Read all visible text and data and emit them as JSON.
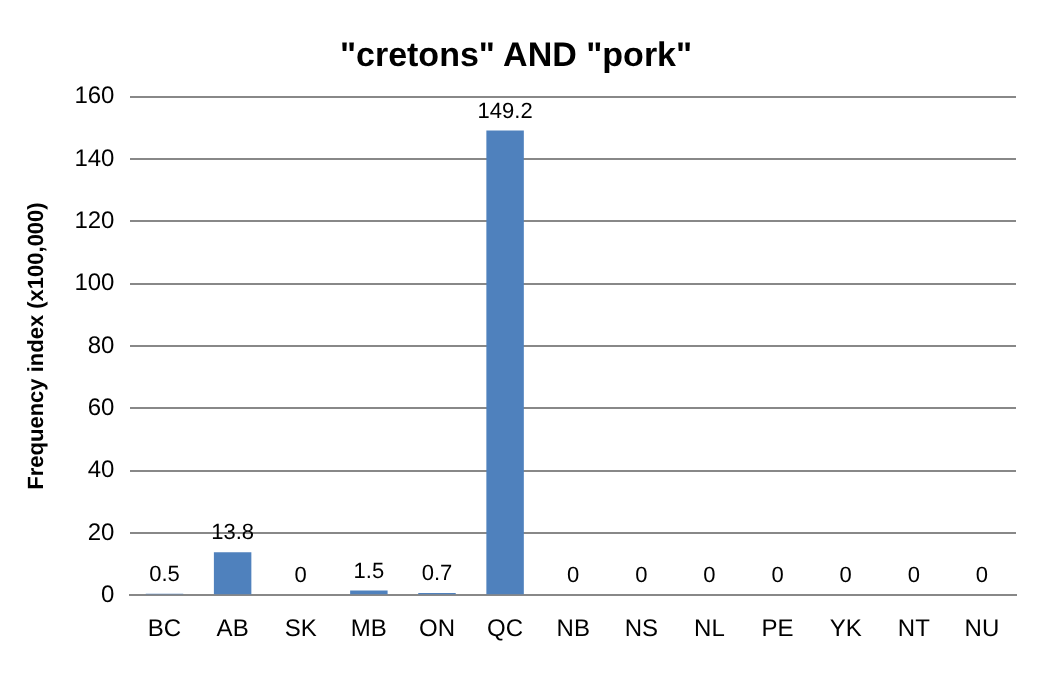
{
  "chart_data": {
    "type": "bar",
    "title": "\"cretons\" AND \"pork\"",
    "ylabel": "Frequency index (x100,000)",
    "categories": [
      "BC",
      "AB",
      "SK",
      "MB",
      "ON",
      "QC",
      "NB",
      "NS",
      "NL",
      "PE",
      "YK",
      "NT",
      "NU"
    ],
    "values": [
      0.5,
      13.8,
      0,
      1.5,
      0.7,
      149.2,
      0,
      0,
      0,
      0,
      0,
      0,
      0
    ],
    "color": "#4f81bd",
    "ylim": [
      0,
      160
    ],
    "yticks": [
      0,
      20,
      40,
      60,
      80,
      100,
      120,
      140,
      160
    ],
    "grid": "y",
    "data_labels": true,
    "legend": false
  }
}
